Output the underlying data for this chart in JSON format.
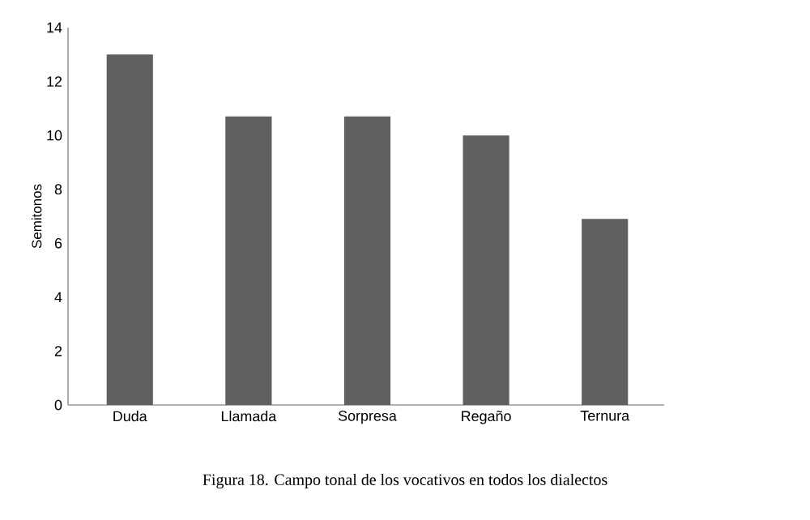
{
  "chart_data": {
    "type": "bar",
    "ylabel": "Semitonos",
    "categories": [
      "Duda",
      "Llamada",
      "Sorpresa",
      "Regaño",
      "Ternura"
    ],
    "values": [
      13,
      10.7,
      10.7,
      10,
      6.9
    ],
    "color": "#606060",
    "ylim": [
      0,
      14
    ],
    "yticks": [
      0,
      2,
      4,
      6,
      8,
      10,
      12,
      14
    ],
    "grid": false,
    "annotations": [
      "Figura 18. Campo tonal de los vocativos en todos los dialectos"
    ]
  }
}
